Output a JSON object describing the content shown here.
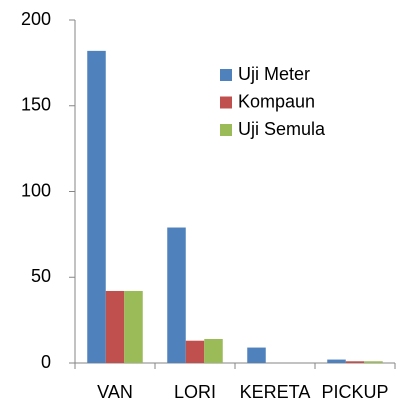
{
  "chart_data": {
    "type": "bar",
    "categories": [
      "VAN",
      "LORI",
      "KERETA",
      "PICKUP"
    ],
    "series": [
      {
        "name": "Uji Meter",
        "color": "#4f81bd",
        "values": [
          182,
          79,
          9,
          2
        ]
      },
      {
        "name": "Kompaun",
        "color": "#c0504d",
        "values": [
          42,
          13,
          0,
          1
        ]
      },
      {
        "name": "Uji Semula",
        "color": "#9bbb59",
        "values": [
          42,
          14,
          0,
          1
        ]
      }
    ],
    "ylim": [
      0,
      200
    ],
    "yticks": [
      0,
      50,
      100,
      150,
      200
    ],
    "grid": false,
    "legend": "upper-right"
  }
}
